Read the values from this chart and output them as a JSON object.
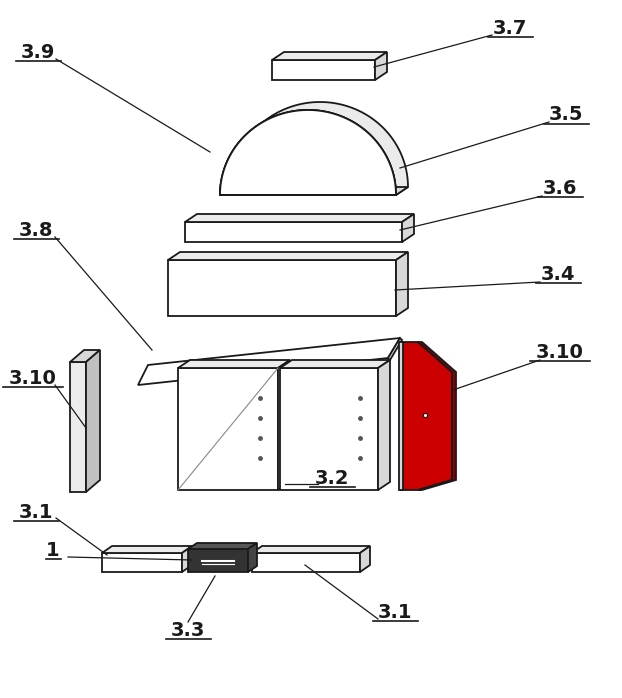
{
  "bg_color": "#ffffff",
  "line_color": "#1a1a1a",
  "red_color": "#cc0000",
  "dark_red": "#880000",
  "face_white": "#ffffff",
  "face_light": "#ebebeb",
  "face_mid": "#d8d8d8",
  "face_dark": "#c0c0c0",
  "face_darkest": "#333333",
  "lw": 1.3,
  "label_fontsize": 14
}
